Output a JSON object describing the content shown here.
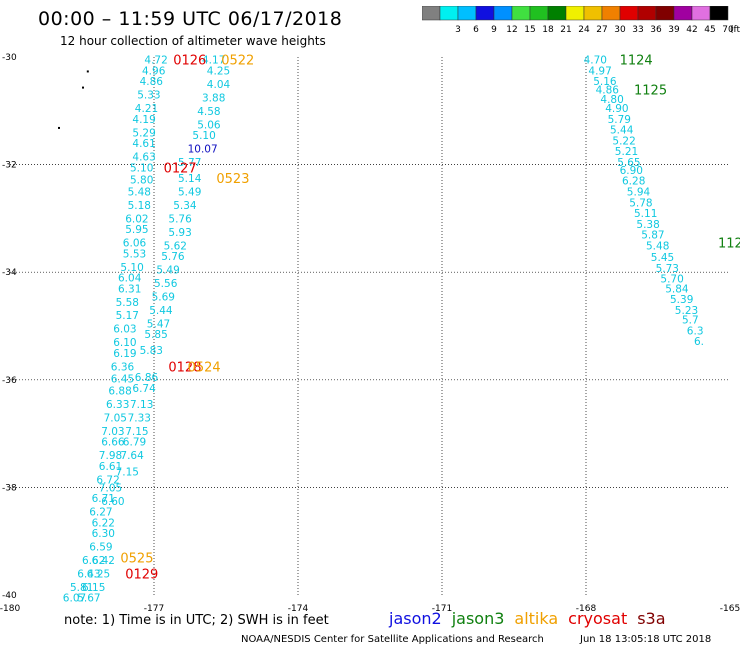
{
  "header": {
    "title": "00:00 – 11:59 UTC 06/17/2018",
    "subtitle": "12 hour collection of altimeter wave heights"
  },
  "colorbar": {
    "unit": "(ft)",
    "bins": [
      {
        "label": "",
        "color": "#808080"
      },
      {
        "label": "3",
        "color": "#00f0f0"
      },
      {
        "label": "6",
        "color": "#00bfff"
      },
      {
        "label": "9",
        "color": "#1010e0"
      },
      {
        "label": "12",
        "color": "#0090ff"
      },
      {
        "label": "15",
        "color": "#40e040"
      },
      {
        "label": "18",
        "color": "#20c020"
      },
      {
        "label": "21",
        "color": "#008000"
      },
      {
        "label": "24",
        "color": "#f0f000"
      },
      {
        "label": "27",
        "color": "#f0c000"
      },
      {
        "label": "30",
        "color": "#f08000"
      },
      {
        "label": "33",
        "color": "#e00000"
      },
      {
        "label": "36",
        "color": "#b00000"
      },
      {
        "label": "39",
        "color": "#800000"
      },
      {
        "label": "42",
        "color": "#a000a0"
      },
      {
        "label": "45",
        "color": "#e070e0"
      },
      {
        "label": "70",
        "color": "#000000"
      }
    ]
  },
  "map": {
    "x_ticks": [
      "-180",
      "-177",
      "-174",
      "-171",
      "-168",
      "-165"
    ],
    "y_ticks": [
      "-30",
      "-32",
      "-34",
      "-36",
      "-38",
      "-40"
    ],
    "xlim": [
      -180,
      -165
    ],
    "ylim": [
      -40,
      -30
    ],
    "grid": true,
    "labels": [
      {
        "text": "0126",
        "lon": -176.6,
        "lat": -30.05,
        "color": "#e00000"
      },
      {
        "text": "0522",
        "lon": -175.6,
        "lat": -30.05,
        "color": "#f0a000"
      },
      {
        "text": "0127",
        "lon": -176.8,
        "lat": -32.05,
        "color": "#e00000"
      },
      {
        "text": "0523",
        "lon": -175.7,
        "lat": -32.25,
        "color": "#f0a000"
      },
      {
        "text": "0128",
        "lon": -176.7,
        "lat": -35.75,
        "color": "#e00000"
      },
      {
        "text": "0524",
        "lon": -176.3,
        "lat": -35.75,
        "color": "#f0a000"
      },
      {
        "text": "0525",
        "lon": -177.7,
        "lat": -39.3,
        "color": "#f0a000"
      },
      {
        "text": "0129",
        "lon": -177.6,
        "lat": -39.6,
        "color": "#e00000"
      },
      {
        "text": "1124",
        "lon": -167.3,
        "lat": -30.05,
        "color": "#108010"
      },
      {
        "text": "1125",
        "lon": -167.0,
        "lat": -30.6,
        "color": "#108010"
      },
      {
        "text": "112",
        "lon": -165.25,
        "lat": -33.45,
        "color": "#108010"
      }
    ],
    "values": [
      {
        "text": "4.72",
        "lon": -177.2,
        "lat": -30.05
      },
      {
        "text": "4.17",
        "lon": -176.0,
        "lat": -30.05
      },
      {
        "text": "4.96",
        "lon": -177.25,
        "lat": -30.25
      },
      {
        "text": "4.25",
        "lon": -175.9,
        "lat": -30.25
      },
      {
        "text": "4.86",
        "lon": -177.3,
        "lat": -30.45
      },
      {
        "text": "4.04",
        "lon": -175.9,
        "lat": -30.5
      },
      {
        "text": "5.33",
        "lon": -177.35,
        "lat": -30.7
      },
      {
        "text": "3.88",
        "lon": -176.0,
        "lat": -30.75
      },
      {
        "text": "4.21",
        "lon": -177.4,
        "lat": -30.95
      },
      {
        "text": "4.58",
        "lon": -176.1,
        "lat": -31.0
      },
      {
        "text": "4.19",
        "lon": -177.45,
        "lat": -31.15
      },
      {
        "text": "5.06",
        "lon": -176.1,
        "lat": -31.25
      },
      {
        "text": "5.29",
        "lon": -177.45,
        "lat": -31.4
      },
      {
        "text": "5.10",
        "lon": -176.2,
        "lat": -31.45
      },
      {
        "text": "4.61",
        "lon": -177.45,
        "lat": -31.6
      },
      {
        "text": "10.07",
        "lon": -176.3,
        "lat": -31.7,
        "color": "#1010c0"
      },
      {
        "text": "4.63",
        "lon": -177.45,
        "lat": -31.85
      },
      {
        "text": "5.77",
        "lon": -176.5,
        "lat": -31.95
      },
      {
        "text": "5.10",
        "lon": -177.5,
        "lat": -32.05
      },
      {
        "text": "5.14",
        "lon": -176.5,
        "lat": -32.25
      },
      {
        "text": "5.80",
        "lon": -177.5,
        "lat": -32.28
      },
      {
        "text": "5.49",
        "lon": -176.5,
        "lat": -32.5
      },
      {
        "text": "5.48",
        "lon": -177.55,
        "lat": -32.5
      },
      {
        "text": "5.34",
        "lon": -176.6,
        "lat": -32.75
      },
      {
        "text": "5.18",
        "lon": -177.55,
        "lat": -32.75
      },
      {
        "text": "5.76",
        "lon": -176.7,
        "lat": -33.0
      },
      {
        "text": "6.02",
        "lon": -177.6,
        "lat": -33.0
      },
      {
        "text": "5.93",
        "lon": -176.7,
        "lat": -33.25
      },
      {
        "text": "5.95",
        "lon": -177.6,
        "lat": -33.2
      },
      {
        "text": "5.62",
        "lon": -176.8,
        "lat": -33.5
      },
      {
        "text": "6.06",
        "lon": -177.65,
        "lat": -33.45
      },
      {
        "text": "5.76",
        "lon": -176.85,
        "lat": -33.7
      },
      {
        "text": "5.53",
        "lon": -177.65,
        "lat": -33.65
      },
      {
        "text": "5.49",
        "lon": -176.95,
        "lat": -33.95
      },
      {
        "text": "5.10",
        "lon": -177.7,
        "lat": -33.9
      },
      {
        "text": "5.56",
        "lon": -177.0,
        "lat": -34.2
      },
      {
        "text": "6.04",
        "lon": -177.75,
        "lat": -34.1
      },
      {
        "text": "5.69",
        "lon": -177.05,
        "lat": -34.45
      },
      {
        "text": "6.31",
        "lon": -177.75,
        "lat": -34.3
      },
      {
        "text": "5.44",
        "lon": -177.1,
        "lat": -34.7
      },
      {
        "text": "5.58",
        "lon": -177.8,
        "lat": -34.55
      },
      {
        "text": "5.47",
        "lon": -177.15,
        "lat": -34.95
      },
      {
        "text": "5.17",
        "lon": -177.8,
        "lat": -34.8
      },
      {
        "text": "5.85",
        "lon": -177.2,
        "lat": -35.15
      },
      {
        "text": "6.03",
        "lon": -177.85,
        "lat": -35.05
      },
      {
        "text": "5.83",
        "lon": -177.3,
        "lat": -35.45
      },
      {
        "text": "6.10",
        "lon": -177.85,
        "lat": -35.3
      },
      {
        "text": "6.19",
        "lon": -177.85,
        "lat": -35.5
      },
      {
        "text": "6.36",
        "lon": -177.9,
        "lat": -35.75
      },
      {
        "text": "6.86",
        "lon": -177.4,
        "lat": -35.95
      },
      {
        "text": "6.45",
        "lon": -177.9,
        "lat": -35.98
      },
      {
        "text": "6.74",
        "lon": -177.45,
        "lat": -36.15
      },
      {
        "text": "6.88",
        "lon": -177.95,
        "lat": -36.2
      },
      {
        "text": "7.13",
        "lon": -177.5,
        "lat": -36.45
      },
      {
        "text": "6.33",
        "lon": -178.0,
        "lat": -36.45
      },
      {
        "text": "7.33",
        "lon": -177.55,
        "lat": -36.7
      },
      {
        "text": "7.05",
        "lon": -178.05,
        "lat": -36.7
      },
      {
        "text": "7.15",
        "lon": -177.6,
        "lat": -36.95
      },
      {
        "text": "7.03",
        "lon": -178.1,
        "lat": -36.95
      },
      {
        "text": "6.79",
        "lon": -177.65,
        "lat": -37.15
      },
      {
        "text": "6.66",
        "lon": -178.1,
        "lat": -37.15
      },
      {
        "text": "7.64",
        "lon": -177.7,
        "lat": -37.4
      },
      {
        "text": "7.98",
        "lon": -178.15,
        "lat": -37.4
      },
      {
        "text": "6.61",
        "lon": -178.15,
        "lat": -37.6
      },
      {
        "text": "7.15",
        "lon": -177.8,
        "lat": -37.7
      },
      {
        "text": "6.72",
        "lon": -178.2,
        "lat": -37.85
      },
      {
        "text": "7.05",
        "lon": -178.15,
        "lat": -38.0
      },
      {
        "text": "6.60",
        "lon": -178.1,
        "lat": -38.25
      },
      {
        "text": "6.71",
        "lon": -178.3,
        "lat": -38.2
      },
      {
        "text": "6.27",
        "lon": -178.35,
        "lat": -38.45
      },
      {
        "text": "6.22",
        "lon": -178.3,
        "lat": -38.65
      },
      {
        "text": "6.30",
        "lon": -178.3,
        "lat": -38.85
      },
      {
        "text": "6.59",
        "lon": -178.35,
        "lat": -39.1
      },
      {
        "text": "6.42",
        "lon": -178.3,
        "lat": -39.35
      },
      {
        "text": "6.62",
        "lon": -178.5,
        "lat": -39.35
      },
      {
        "text": "6.25",
        "lon": -178.4,
        "lat": -39.6
      },
      {
        "text": "6.43",
        "lon": -178.6,
        "lat": -39.6
      },
      {
        "text": "6.15",
        "lon": -178.5,
        "lat": -39.85
      },
      {
        "text": "5.81",
        "lon": -178.75,
        "lat": -39.85
      },
      {
        "text": "6.07",
        "lon": -178.9,
        "lat": -40.05
      },
      {
        "text": "5.67",
        "lon": -178.6,
        "lat": -40.05
      },
      {
        "text": "4.70",
        "lon": -168.05,
        "lat": -30.05
      },
      {
        "text": "4.97",
        "lon": -167.95,
        "lat": -30.25
      },
      {
        "text": "5.16",
        "lon": -167.85,
        "lat": -30.45
      },
      {
        "text": "4.86",
        "lon": -167.8,
        "lat": -30.6
      },
      {
        "text": "4.80",
        "lon": -167.7,
        "lat": -30.78
      },
      {
        "text": "4.90",
        "lon": -167.6,
        "lat": -30.95
      },
      {
        "text": "5.79",
        "lon": -167.55,
        "lat": -31.15
      },
      {
        "text": "5.44",
        "lon": -167.5,
        "lat": -31.35
      },
      {
        "text": "5.22",
        "lon": -167.45,
        "lat": -31.55
      },
      {
        "text": "5.21",
        "lon": -167.4,
        "lat": -31.75
      },
      {
        "text": "5.65",
        "lon": -167.35,
        "lat": -31.95
      },
      {
        "text": "6.90",
        "lon": -167.3,
        "lat": -32.1
      },
      {
        "text": "6.28",
        "lon": -167.25,
        "lat": -32.3
      },
      {
        "text": "5.94",
        "lon": -167.15,
        "lat": -32.5
      },
      {
        "text": "5.78",
        "lon": -167.1,
        "lat": -32.7
      },
      {
        "text": "5.11",
        "lon": -167.0,
        "lat": -32.9
      },
      {
        "text": "5.38",
        "lon": -166.95,
        "lat": -33.1
      },
      {
        "text": "5.87",
        "lon": -166.85,
        "lat": -33.3
      },
      {
        "text": "5.48",
        "lon": -166.75,
        "lat": -33.5
      },
      {
        "text": "5.45",
        "lon": -166.65,
        "lat": -33.72
      },
      {
        "text": "5.73",
        "lon": -166.55,
        "lat": -33.92
      },
      {
        "text": "5.70",
        "lon": -166.45,
        "lat": -34.12
      },
      {
        "text": "5.84",
        "lon": -166.35,
        "lat": -34.3
      },
      {
        "text": "5.39",
        "lon": -166.25,
        "lat": -34.5
      },
      {
        "text": "5.23",
        "lon": -166.15,
        "lat": -34.7
      },
      {
        "text": "5.7",
        "lon": -166.0,
        "lat": -34.88
      },
      {
        "text": "6.3",
        "lon": -165.9,
        "lat": -35.08
      },
      {
        "text": "6.",
        "lon": -165.75,
        "lat": -35.28
      }
    ],
    "dots": [
      {
        "lon": -178.4,
        "lat": -30.25
      },
      {
        "lon": -178.5,
        "lat": -30.55
      },
      {
        "lon": -179.0,
        "lat": -31.3
      }
    ]
  },
  "footer": {
    "note": "note:  1) Time is in UTC;  2) SWH is in feet",
    "legend": [
      {
        "label": "jason2",
        "color": "#1010e0"
      },
      {
        "label": "jason3",
        "color": "#108010"
      },
      {
        "label": "altika",
        "color": "#f0a000"
      },
      {
        "label": "cryosat",
        "color": "#e00000"
      },
      {
        "label": "s3a",
        "color": "#800000"
      }
    ],
    "credit": "NOAA/NESDIS Center for Satellite Applications and Research",
    "timestamp": "Jun 18 13:05:18 UTC 2018"
  }
}
